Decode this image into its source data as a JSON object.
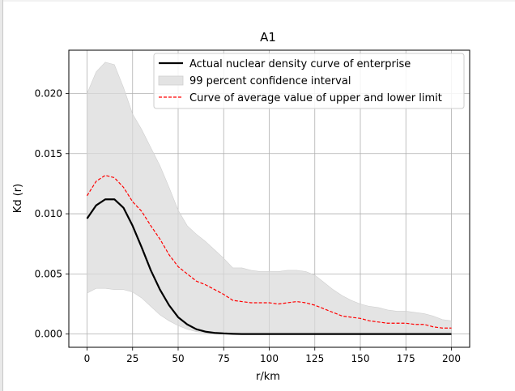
{
  "chart_data": {
    "type": "line",
    "title": "A1",
    "xlabel": "r/km",
    "ylabel": "Kd (r)",
    "xlim": [
      -10,
      210
    ],
    "ylim": [
      -0.0011,
      0.0236
    ],
    "grid": true,
    "legend_position": "top-right",
    "xticks": [
      0,
      25,
      50,
      75,
      100,
      125,
      150,
      175,
      200
    ],
    "xtick_labels": [
      "0",
      "25",
      "50",
      "75",
      "100",
      "125",
      "150",
      "175",
      "200"
    ],
    "yticks": [
      0.0,
      0.005,
      0.01,
      0.015,
      0.02
    ],
    "ytick_labels": [
      "0.000",
      "0.005",
      "0.010",
      "0.015",
      "0.020"
    ],
    "x": [
      0,
      5,
      10,
      15,
      20,
      25,
      30,
      35,
      40,
      45,
      50,
      55,
      60,
      65,
      70,
      75,
      80,
      85,
      90,
      95,
      100,
      105,
      110,
      115,
      120,
      125,
      130,
      135,
      140,
      145,
      150,
      155,
      160,
      165,
      170,
      175,
      180,
      185,
      190,
      195,
      200
    ],
    "series": [
      {
        "name": "Actual nuclear density curve of enterprise",
        "kind": "line",
        "color": "#000000",
        "values": [
          0.0096,
          0.0107,
          0.0112,
          0.0112,
          0.0105,
          0.009,
          0.0072,
          0.0053,
          0.0037,
          0.0024,
          0.0014,
          0.0008,
          0.0004,
          0.0002,
          0.0001,
          5e-05,
          2e-05,
          0.0,
          0.0,
          0.0,
          0.0,
          0.0,
          0.0,
          0.0,
          0.0,
          0.0,
          0.0,
          0.0,
          0.0,
          0.0,
          0.0,
          0.0,
          0.0,
          0.0,
          0.0,
          0.0,
          0.0,
          0.0,
          0.0,
          0.0,
          0.0
        ]
      },
      {
        "name": "99 percent confidence interval",
        "kind": "band",
        "color": "#d9d9d9",
        "lower": [
          0.0034,
          0.0038,
          0.0038,
          0.0037,
          0.0037,
          0.0035,
          0.003,
          0.0023,
          0.0016,
          0.0011,
          0.0007,
          0.0004,
          0.0002,
          0.0001,
          5e-05,
          2e-05,
          0.0,
          0.0,
          0.0,
          0.0,
          0.0,
          0.0,
          0.0,
          0.0,
          0.0,
          0.0,
          0.0,
          0.0,
          0.0,
          0.0,
          0.0,
          0.0,
          0.0,
          0.0,
          0.0,
          0.0,
          0.0,
          0.0,
          0.0,
          0.0,
          0.0
        ],
        "upper": [
          0.02,
          0.0218,
          0.0226,
          0.0224,
          0.0205,
          0.0183,
          0.017,
          0.0155,
          0.014,
          0.0122,
          0.0103,
          0.009,
          0.0083,
          0.0077,
          0.007,
          0.0063,
          0.0055,
          0.0055,
          0.0053,
          0.0052,
          0.0052,
          0.0052,
          0.0053,
          0.0053,
          0.0052,
          0.0049,
          0.0043,
          0.0037,
          0.0032,
          0.0028,
          0.0025,
          0.0023,
          0.0022,
          0.002,
          0.0019,
          0.0019,
          0.0018,
          0.0017,
          0.0015,
          0.0012,
          0.0011
        ]
      },
      {
        "name": "Curve of average value of upper and lower limit",
        "kind": "dashed-line",
        "color": "#ff0000",
        "values": [
          0.0115,
          0.0127,
          0.0132,
          0.013,
          0.0122,
          0.011,
          0.0102,
          0.009,
          0.0079,
          0.0066,
          0.0056,
          0.005,
          0.0044,
          0.0041,
          0.0037,
          0.0033,
          0.0028,
          0.0027,
          0.0026,
          0.0026,
          0.0026,
          0.0025,
          0.0026,
          0.0027,
          0.0026,
          0.0024,
          0.0021,
          0.0018,
          0.0015,
          0.0014,
          0.0013,
          0.0011,
          0.001,
          0.0009,
          0.0009,
          0.0009,
          0.0008,
          0.0008,
          0.0006,
          0.0005,
          0.0005
        ]
      }
    ]
  }
}
